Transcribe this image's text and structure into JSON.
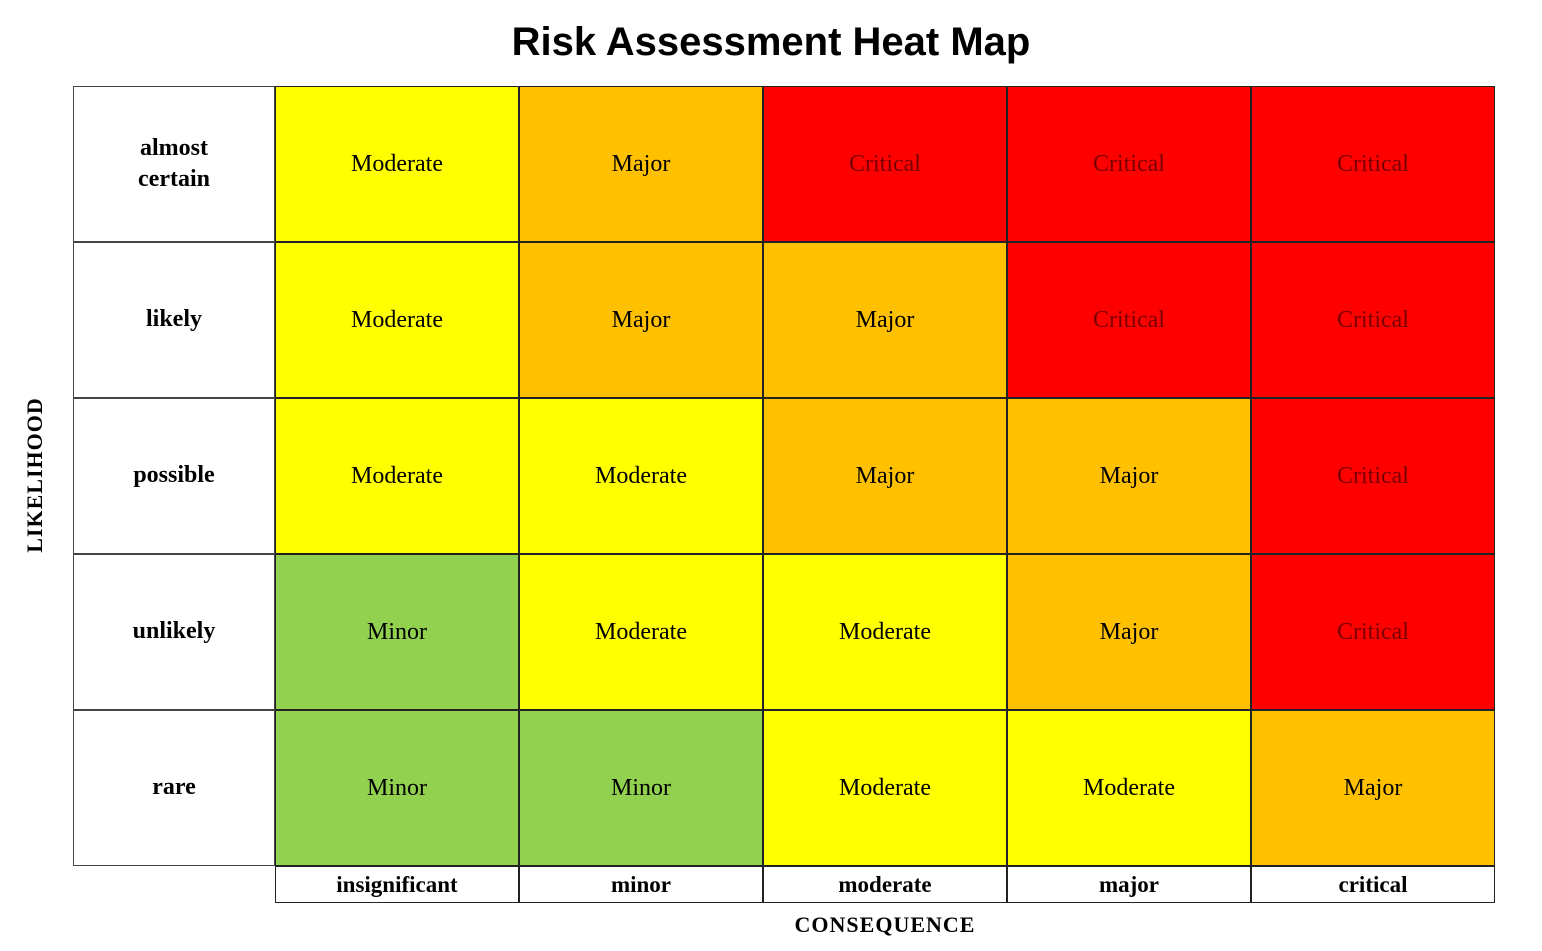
{
  "title": "Risk Assessment Heat Map",
  "y_axis_label": "LIKELIHOOD",
  "x_axis_label": "CONSEQUENCE",
  "rows": [
    "almost certain",
    "likely",
    "possible",
    "unlikely",
    "rare"
  ],
  "columns": [
    "insignificant",
    "minor",
    "moderate",
    "major",
    "critical"
  ],
  "cells": [
    [
      "Moderate",
      "Major",
      "Critical",
      "Critical",
      "Critical"
    ],
    [
      "Moderate",
      "Major",
      "Major",
      "Critical",
      "Critical"
    ],
    [
      "Moderate",
      "Moderate",
      "Major",
      "Major",
      "Critical"
    ],
    [
      "Minor",
      "Moderate",
      "Moderate",
      "Major",
      "Critical"
    ],
    [
      "Minor",
      "Minor",
      "Moderate",
      "Moderate",
      "Major"
    ]
  ],
  "colors": {
    "Minor": "#92d050",
    "Moderate": "#ffff00",
    "Major": "#ffc000",
    "Critical": "#ff0000"
  }
}
